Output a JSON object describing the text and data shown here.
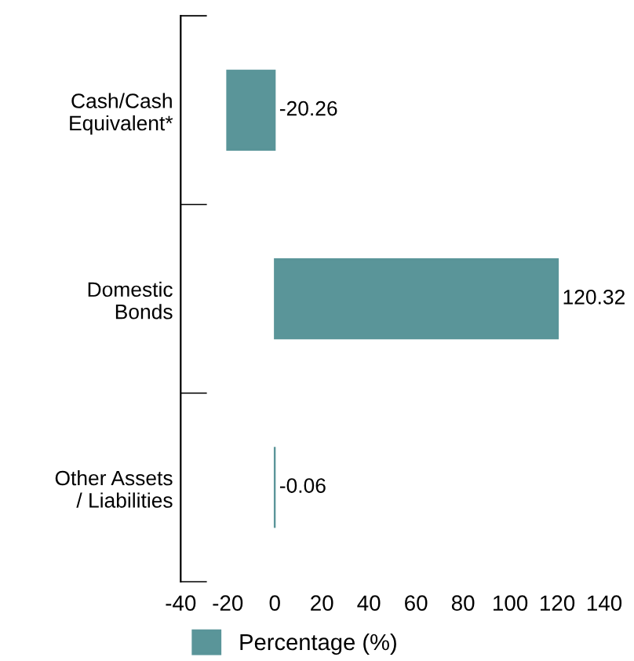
{
  "chart_data": {
    "type": "bar",
    "orientation": "horizontal",
    "categories": [
      "Cash/Cash\nEquivalent*",
      "Domestic\nBonds",
      "Other Assets\n/ Liabilities"
    ],
    "series": [
      {
        "name": "Percentage (%)",
        "color": "#5a9599",
        "values": [
          -20.26,
          120.32,
          -0.06
        ]
      }
    ],
    "data_labels": true,
    "xlim": [
      -40,
      140
    ],
    "xticks": [
      -40,
      -20,
      0,
      20,
      40,
      60,
      80,
      100,
      120,
      140
    ],
    "grid": false,
    "legend": "bottom"
  }
}
